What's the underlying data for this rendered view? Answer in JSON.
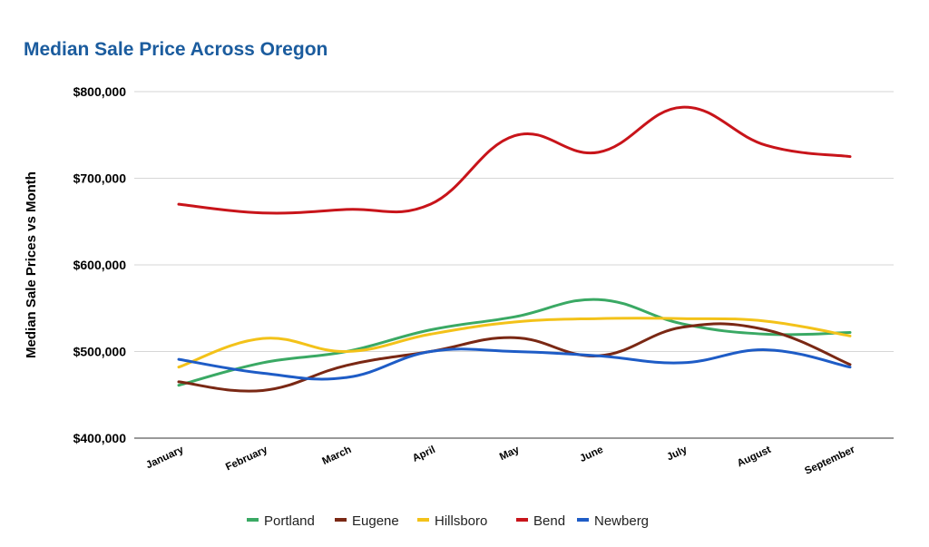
{
  "chart_data": {
    "type": "line",
    "title": "Median Sale Price Across Oregon",
    "xlabel": "",
    "ylabel": "Median Sale Prices vs Month",
    "ylim": [
      400000,
      800000
    ],
    "yticks": [
      "$400,000",
      "$500,000",
      "$600,000",
      "$700,000",
      "$800,000"
    ],
    "ytick_values": [
      400000,
      500000,
      600000,
      700000,
      800000
    ],
    "grid": true,
    "smooth": true,
    "legend_position": "bottom",
    "categories": [
      "January",
      "February",
      "March",
      "April",
      "May",
      "June",
      "July",
      "August",
      "September"
    ],
    "series": [
      {
        "name": "Portland",
        "color": "#3aa964",
        "values": [
          461000,
          487000,
          500000,
          525000,
          540000,
          560000,
          532000,
          520000,
          522000
        ]
      },
      {
        "name": "Eugene",
        "color": "#7a2814",
        "values": [
          465000,
          455000,
          484000,
          500000,
          516000,
          495000,
          528000,
          525000,
          485000
        ]
      },
      {
        "name": "Hillsboro",
        "color": "#f3c219",
        "values": [
          482000,
          515000,
          500000,
          520000,
          534000,
          538000,
          538000,
          535000,
          518000
        ]
      },
      {
        "name": "Bend",
        "color": "#c8141a",
        "values": [
          670000,
          660000,
          664000,
          670000,
          749000,
          730000,
          782000,
          738000,
          725000
        ]
      },
      {
        "name": "Newberg",
        "color": "#1e5cc6",
        "values": [
          491000,
          475000,
          470000,
          500000,
          500000,
          495000,
          487000,
          502000,
          482000
        ]
      }
    ]
  }
}
